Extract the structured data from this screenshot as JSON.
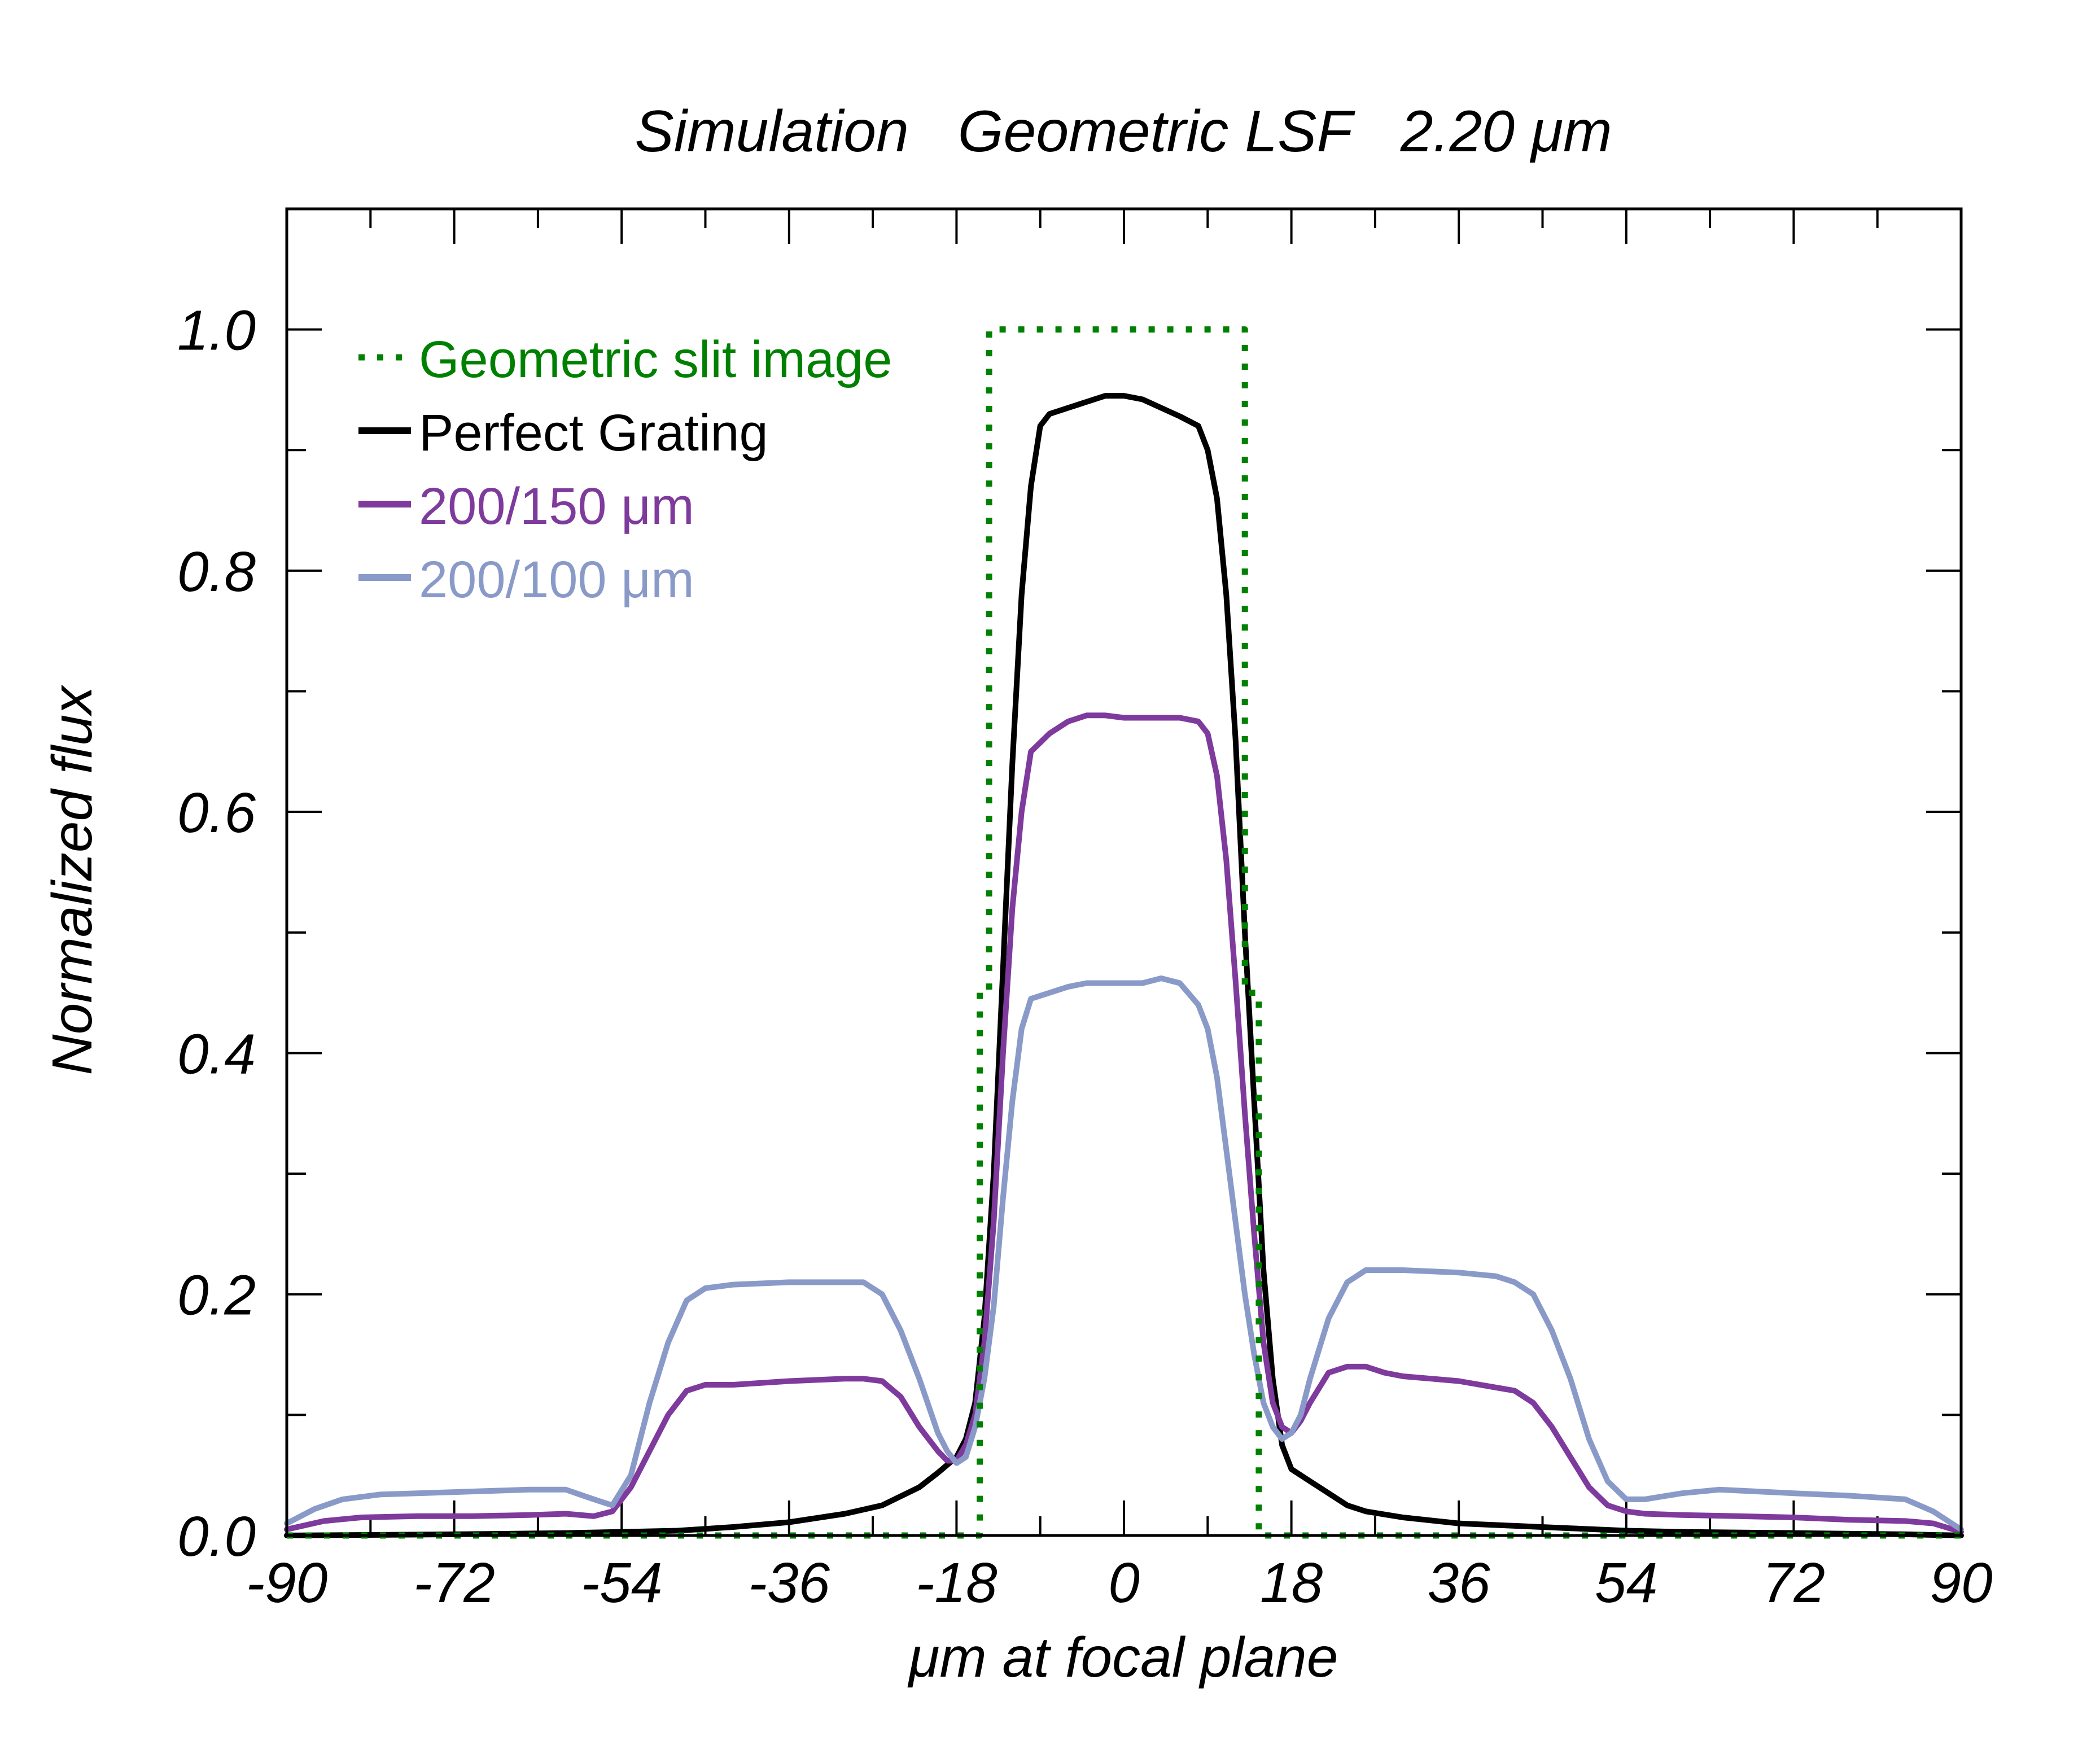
{
  "chart_data": {
    "type": "line",
    "title": "Simulation   Geometric LSF   2.20 μm",
    "xlabel": "μm at focal plane",
    "ylabel": "Normalized flux",
    "xlim": [
      -90,
      90
    ],
    "ylim": [
      0,
      1.1
    ],
    "xticks": [
      -90,
      -72,
      -54,
      -36,
      -18,
      0,
      18,
      36,
      54,
      72,
      90
    ],
    "xtick_labels": [
      "-90",
      "-72",
      "-54",
      "-36",
      "-18",
      "0",
      "18",
      "36",
      "54",
      "72",
      "90"
    ],
    "xminor": [
      -81,
      -63,
      -45,
      -27,
      -9,
      9,
      27,
      45,
      63,
      81
    ],
    "yticks": [
      0.0,
      0.2,
      0.4,
      0.6,
      0.8,
      1.0
    ],
    "ytick_labels": [
      "0.0",
      "0.2",
      "0.4",
      "0.6",
      "0.8",
      "1.0"
    ],
    "yminor": [
      0.1,
      0.3,
      0.5,
      0.7,
      0.9
    ],
    "grid": false,
    "legend_position": "top-left",
    "series": [
      {
        "name": "Geometric slit image",
        "color": "#008000",
        "style": "dotted",
        "x": [
          -90,
          -15.5,
          -15.5,
          -14.5,
          -14.5,
          13,
          13,
          14.5,
          14.5,
          90
        ],
        "y": [
          0,
          0,
          0.45,
          0.45,
          1.0,
          1.0,
          0.45,
          0.45,
          0,
          0
        ]
      },
      {
        "name": "Perfect Grating",
        "color": "#000000",
        "style": "solid",
        "x": [
          -90,
          -72,
          -60,
          -54,
          -48,
          -42,
          -36,
          -30,
          -26,
          -22,
          -20,
          -18,
          -17,
          -16,
          -15,
          -14,
          -13,
          -12,
          -11,
          -10,
          -9,
          -8,
          -6,
          -4,
          -2,
          0,
          2,
          4,
          6,
          8,
          9,
          10,
          11,
          12,
          13,
          14,
          15,
          16,
          17,
          18,
          20,
          22,
          24,
          26,
          30,
          36,
          42,
          48,
          54,
          60,
          72,
          84,
          90
        ],
        "y": [
          0.0,
          0.001,
          0.002,
          0.003,
          0.004,
          0.007,
          0.011,
          0.018,
          0.025,
          0.04,
          0.052,
          0.065,
          0.08,
          0.11,
          0.18,
          0.3,
          0.47,
          0.64,
          0.78,
          0.87,
          0.92,
          0.93,
          0.935,
          0.94,
          0.945,
          0.945,
          0.942,
          0.935,
          0.928,
          0.92,
          0.9,
          0.86,
          0.78,
          0.66,
          0.5,
          0.36,
          0.22,
          0.13,
          0.075,
          0.055,
          0.045,
          0.035,
          0.025,
          0.02,
          0.015,
          0.01,
          0.008,
          0.006,
          0.004,
          0.003,
          0.002,
          0.001,
          0.0
        ]
      },
      {
        "name": "200/150 μm",
        "color": "#7e3a9c",
        "style": "solid",
        "x": [
          -90,
          -86,
          -82,
          -76,
          -70,
          -64,
          -60,
          -57,
          -55,
          -53,
          -51,
          -49,
          -47,
          -45,
          -42,
          -36,
          -30,
          -28,
          -26,
          -24,
          -22,
          -20,
          -19,
          -18,
          -17,
          -16,
          -15,
          -14,
          -13,
          -12,
          -11,
          -10,
          -8,
          -6,
          -4,
          -2,
          0,
          2,
          4,
          6,
          8,
          9,
          10,
          11,
          12,
          13,
          14,
          15,
          16,
          17,
          18,
          19,
          20,
          22,
          24,
          26,
          28,
          30,
          36,
          42,
          44,
          46,
          48,
          50,
          52,
          54,
          56,
          60,
          66,
          72,
          78,
          84,
          87,
          90
        ],
        "y": [
          0.005,
          0.012,
          0.015,
          0.016,
          0.016,
          0.017,
          0.018,
          0.016,
          0.02,
          0.04,
          0.07,
          0.1,
          0.12,
          0.125,
          0.125,
          0.128,
          0.13,
          0.13,
          0.128,
          0.115,
          0.09,
          0.07,
          0.062,
          0.062,
          0.075,
          0.1,
          0.16,
          0.26,
          0.4,
          0.52,
          0.6,
          0.65,
          0.665,
          0.675,
          0.68,
          0.68,
          0.678,
          0.678,
          0.678,
          0.678,
          0.675,
          0.665,
          0.63,
          0.56,
          0.46,
          0.35,
          0.25,
          0.16,
          0.11,
          0.09,
          0.085,
          0.095,
          0.11,
          0.135,
          0.14,
          0.14,
          0.135,
          0.132,
          0.128,
          0.12,
          0.11,
          0.09,
          0.065,
          0.04,
          0.025,
          0.02,
          0.018,
          0.017,
          0.016,
          0.015,
          0.013,
          0.012,
          0.01,
          0.003
        ]
      },
      {
        "name": "200/100 μm",
        "color": "#8a9ac8",
        "style": "solid",
        "x": [
          -90,
          -87,
          -84,
          -80,
          -72,
          -64,
          -60,
          -57,
          -55,
          -53,
          -51,
          -49,
          -47,
          -45,
          -42,
          -36,
          -30,
          -28,
          -26,
          -24,
          -22,
          -20,
          -19,
          -18,
          -17,
          -16,
          -15,
          -14,
          -13,
          -12,
          -11,
          -10,
          -8,
          -6,
          -4,
          -2,
          0,
          2,
          4,
          6,
          8,
          9,
          10,
          11,
          12,
          13,
          14,
          15,
          16,
          17,
          18,
          19,
          20,
          22,
          24,
          26,
          30,
          36,
          40,
          42,
          44,
          46,
          48,
          50,
          52,
          54,
          56,
          60,
          64,
          72,
          78,
          84,
          87,
          90
        ],
        "y": [
          0.01,
          0.022,
          0.03,
          0.034,
          0.036,
          0.038,
          0.038,
          0.03,
          0.025,
          0.05,
          0.11,
          0.16,
          0.195,
          0.205,
          0.208,
          0.21,
          0.21,
          0.21,
          0.2,
          0.17,
          0.13,
          0.085,
          0.07,
          0.06,
          0.065,
          0.09,
          0.13,
          0.19,
          0.28,
          0.36,
          0.42,
          0.445,
          0.45,
          0.455,
          0.458,
          0.458,
          0.458,
          0.458,
          0.462,
          0.458,
          0.44,
          0.42,
          0.38,
          0.32,
          0.26,
          0.2,
          0.15,
          0.11,
          0.09,
          0.08,
          0.085,
          0.1,
          0.13,
          0.18,
          0.21,
          0.22,
          0.22,
          0.218,
          0.215,
          0.21,
          0.2,
          0.17,
          0.13,
          0.08,
          0.045,
          0.03,
          0.03,
          0.035,
          0.038,
          0.035,
          0.033,
          0.03,
          0.02,
          0.005
        ]
      }
    ]
  }
}
